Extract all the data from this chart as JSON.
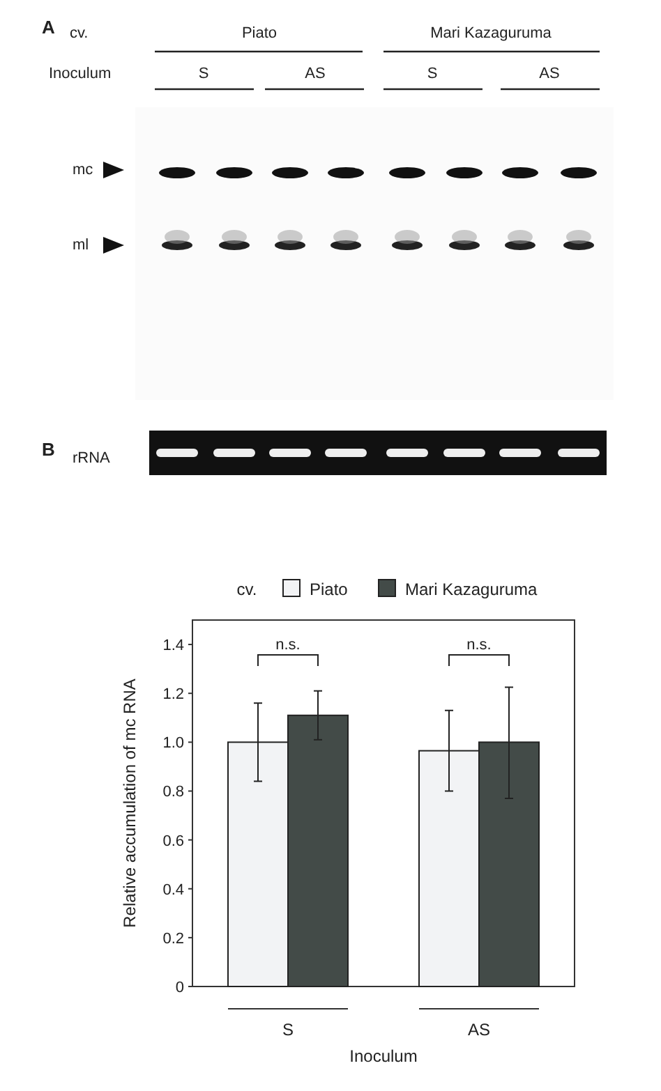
{
  "chart_data": {
    "type": "bar",
    "xlabel": "Inoculum",
    "ylabel": "Relative accumulation of mc RNA",
    "legend_title": "cv.",
    "legend": "top",
    "categories": [
      "S",
      "AS"
    ],
    "series": [
      {
        "name": "Piato",
        "color": "#f2f3f5",
        "values": [
          1.0,
          0.965
        ],
        "errors": [
          [
            0.84,
            1.16
          ],
          [
            0.8,
            1.13
          ]
        ]
      },
      {
        "name": "Mari Kazaguruma",
        "color": "#434b48",
        "values": [
          1.11,
          1.0
        ],
        "errors": [
          [
            1.01,
            1.21
          ],
          [
            0.77,
            1.225
          ]
        ]
      }
    ],
    "ylim": [
      0,
      1.5
    ],
    "yticks": [
      0,
      0.2,
      0.4,
      0.6,
      0.8,
      {
        "value": 1,
        "label": "1.0"
      },
      1.2,
      1.4
    ],
    "grid": false,
    "annotations": [
      "A",
      "cv.",
      "Piato",
      "Mari Kazaguruma",
      "Inoculum",
      "S",
      "AS",
      "S",
      "AS",
      "mc",
      "ml",
      "B",
      "rRNA",
      "n.s.",
      "n.s."
    ]
  }
}
